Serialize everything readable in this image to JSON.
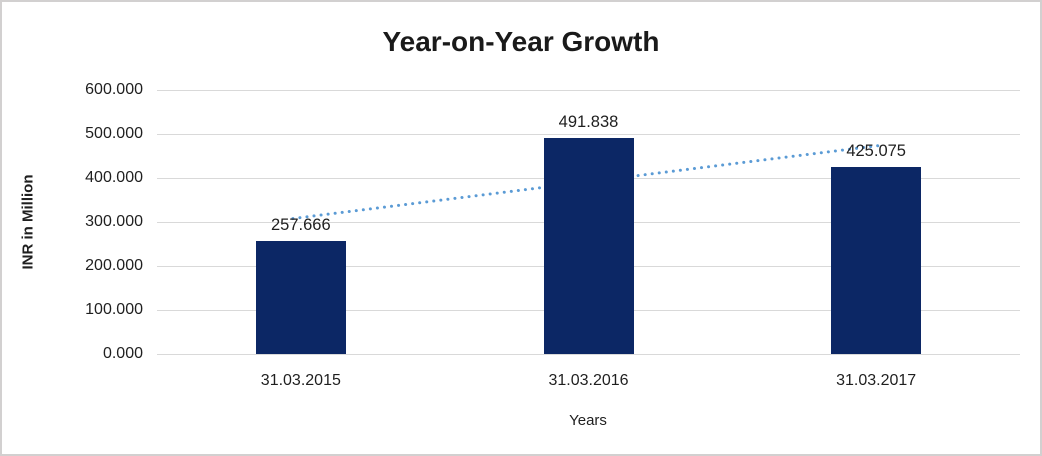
{
  "chart_data": {
    "type": "bar",
    "title": "Year-on-Year Growth",
    "categories": [
      "31.03.2015",
      "31.03.2016",
      "31.03.2017"
    ],
    "values": [
      257.666,
      491.838,
      425.075
    ],
    "data_labels": [
      "257.666",
      "491.838",
      "425.075"
    ],
    "xlabel": "Years",
    "ylabel": "INR in Million",
    "ylim": [
      0,
      600
    ],
    "ytick_labels_top_to_bottom": [
      "600.000",
      "500.000",
      "400.000",
      "300.000",
      "200.000",
      "100.000",
      "0.000"
    ],
    "ytick_values_top_to_bottom": [
      600,
      500,
      400,
      300,
      200,
      100,
      0
    ],
    "grid": true,
    "legend_position": "none",
    "bar_color": "#0c2765",
    "trendline": {
      "type": "linear",
      "style": "dotted",
      "color": "#5b9bd5"
    },
    "gridline_color": "#d9d9d9",
    "frame_border_color": "#d2d0d0",
    "text_color": "#1f1f1f"
  }
}
